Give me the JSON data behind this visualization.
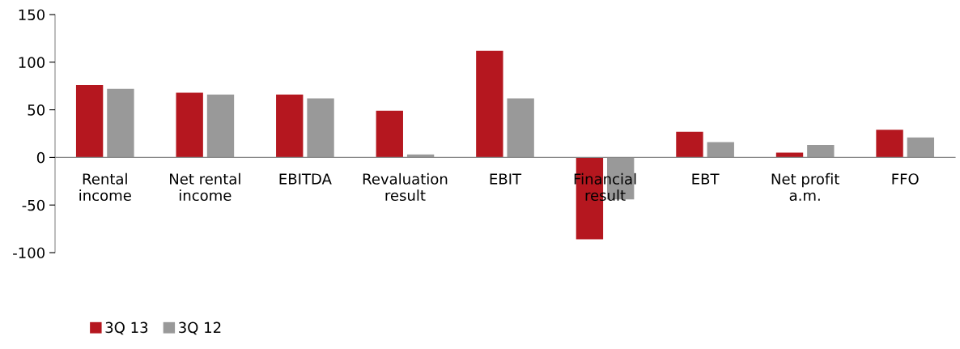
{
  "chart_data": {
    "type": "bar",
    "categories": [
      "Rental\nincome",
      "Net rental\nincome",
      "EBITDA",
      "Revaluation\nresult",
      "EBIT",
      "Financial\nresult",
      "EBT",
      "Net profit\na.m.",
      "FFO"
    ],
    "series": [
      {
        "name": "3Q 13",
        "color": "#b5171f",
        "values": [
          76,
          68,
          66,
          49,
          112,
          -86,
          27,
          5,
          29
        ]
      },
      {
        "name": "3Q 12",
        "color": "#999999",
        "values": [
          72,
          66,
          62,
          3,
          62,
          -44,
          16,
          13,
          21
        ]
      }
    ],
    "ylim": [
      -100,
      150
    ],
    "yticks": [
      -100,
      -50,
      0,
      50,
      100,
      150
    ],
    "grid": false,
    "legend": "bottom left"
  }
}
